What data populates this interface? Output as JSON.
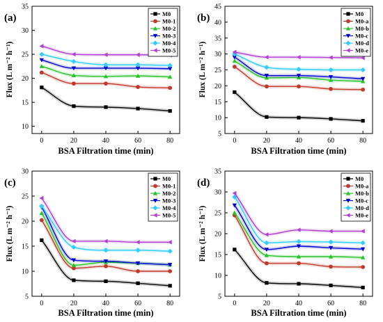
{
  "charts": [
    {
      "panel_label": "(a)",
      "chart_data": {
        "type": "line",
        "xlabel": "BSA Filtration time (min)",
        "ylabel": "Flux (L m⁻² h⁻¹)",
        "x": [
          0,
          20,
          40,
          60,
          80
        ],
        "xlim": [
          -6,
          86
        ],
        "ylim": [
          8.5,
          35
        ],
        "yticks": [
          10,
          15,
          20,
          25,
          30,
          35
        ],
        "xticks": [
          0,
          20,
          40,
          60,
          80
        ],
        "legend_position": "top-right",
        "series": [
          {
            "name": "M0",
            "marker": "square",
            "color": "#000000",
            "values": [
              18.1,
              14.2,
              14.0,
              13.7,
              13.2
            ]
          },
          {
            "name": "M0-1",
            "marker": "circle",
            "color": "#c0392b",
            "values": [
              21.2,
              18.9,
              18.9,
              18.2,
              18.0
            ]
          },
          {
            "name": "M0-2",
            "marker": "triangle-up",
            "color": "#27c427",
            "values": [
              22.5,
              20.6,
              20.4,
              20.5,
              20.3
            ]
          },
          {
            "name": "M0-3",
            "marker": "triangle-down",
            "color": "#0000cc",
            "values": [
              23.8,
              22.1,
              22.1,
              22.1,
              22.0
            ]
          },
          {
            "name": "M0-4",
            "marker": "diamond",
            "color": "#33ccff",
            "values": [
              25.0,
              23.5,
              22.8,
              22.8,
              22.7
            ]
          },
          {
            "name": "M0-5",
            "marker": "triangle-left",
            "color": "#b040d0",
            "values": [
              26.7,
              25.0,
              24.9,
              24.9,
              24.8
            ]
          }
        ]
      }
    },
    {
      "panel_label": "(b)",
      "chart_data": {
        "type": "line",
        "xlabel": "BSA Filtration time (min)",
        "ylabel": "Flux (L m⁻² h⁻¹)",
        "x": [
          0,
          20,
          40,
          60,
          80
        ],
        "xlim": [
          -6,
          86
        ],
        "ylim": [
          5,
          45
        ],
        "yticks": [
          5,
          10,
          15,
          20,
          25,
          30,
          35,
          40,
          45
        ],
        "xticks": [
          0,
          20,
          40,
          60,
          80
        ],
        "legend_position": "top-right",
        "series": [
          {
            "name": "M0",
            "marker": "square",
            "color": "#000000",
            "values": [
              18.0,
              10.2,
              10.0,
              9.6,
              9.0
            ]
          },
          {
            "name": "M0-a",
            "marker": "circle",
            "color": "#c0392b",
            "values": [
              26.0,
              19.8,
              19.8,
              19.0,
              18.8
            ]
          },
          {
            "name": "M0-b",
            "marker": "triangle-up",
            "color": "#27c427",
            "values": [
              27.8,
              22.5,
              22.6,
              21.8,
              21.4
            ]
          },
          {
            "name": "M0-c",
            "marker": "triangle-down",
            "color": "#0000cc",
            "values": [
              29.0,
              23.2,
              23.2,
              22.8,
              22.2
            ]
          },
          {
            "name": "M0-d",
            "marker": "diamond",
            "color": "#33ccff",
            "values": [
              30.0,
              25.8,
              25.2,
              25.0,
              25.0
            ]
          },
          {
            "name": "M0-e",
            "marker": "triangle-left",
            "color": "#b040d0",
            "values": [
              30.6,
              29.0,
              29.0,
              28.9,
              28.8
            ]
          }
        ]
      }
    },
    {
      "panel_label": "(c)",
      "chart_data": {
        "type": "line",
        "xlabel": "BSA Filtration time (min)",
        "ylabel": "Flux (L m⁻² h⁻¹)",
        "x": [
          0,
          20,
          40,
          60,
          80
        ],
        "xlim": [
          -6,
          86
        ],
        "ylim": [
          5,
          30
        ],
        "yticks": [
          5,
          10,
          15,
          20,
          25,
          30
        ],
        "xticks": [
          0,
          20,
          40,
          60,
          80
        ],
        "legend_position": "top-right",
        "series": [
          {
            "name": "M0",
            "marker": "square",
            "color": "#000000",
            "values": [
              16.2,
              8.2,
              8.0,
              7.6,
              7.1
            ]
          },
          {
            "name": "M0-1",
            "marker": "circle",
            "color": "#c0392b",
            "values": [
              20.2,
              10.6,
              11.0,
              10.0,
              10.0
            ]
          },
          {
            "name": "M0-2",
            "marker": "triangle-up",
            "color": "#27c427",
            "values": [
              21.6,
              11.2,
              11.8,
              11.6,
              11.3
            ]
          },
          {
            "name": "M0-3",
            "marker": "triangle-down",
            "color": "#0000cc",
            "values": [
              22.8,
              12.2,
              12.0,
              11.6,
              11.3
            ]
          },
          {
            "name": "M0-4",
            "marker": "diamond",
            "color": "#33ccff",
            "values": [
              23.0,
              14.8,
              14.2,
              14.2,
              14.0
            ]
          },
          {
            "name": "M0-5",
            "marker": "triangle-left",
            "color": "#b040d0",
            "values": [
              24.6,
              16.0,
              16.0,
              15.8,
              15.8
            ]
          }
        ]
      }
    },
    {
      "panel_label": "(d)",
      "chart_data": {
        "type": "line",
        "xlabel": "BSA Filtration time (min)",
        "ylabel": "Flux (L m⁻² h⁻¹)",
        "x": [
          0,
          20,
          40,
          60,
          80
        ],
        "xlim": [
          -6,
          86
        ],
        "ylim": [
          5,
          35
        ],
        "yticks": [
          5,
          10,
          15,
          20,
          25,
          30,
          35
        ],
        "xticks": [
          0,
          20,
          40,
          60,
          80
        ],
        "legend_position": "top-right",
        "series": [
          {
            "name": "M0",
            "marker": "square",
            "color": "#000000",
            "values": [
              16.2,
              8.2,
              8.0,
              7.6,
              7.1
            ]
          },
          {
            "name": "M0-a",
            "marker": "circle",
            "color": "#c0392b",
            "values": [
              24.4,
              12.9,
              12.9,
              12.1,
              12.0
            ]
          },
          {
            "name": "M0-b",
            "marker": "triangle-up",
            "color": "#27c427",
            "values": [
              25.0,
              14.8,
              14.5,
              14.5,
              14.3
            ]
          },
          {
            "name": "M0-c",
            "marker": "triangle-down",
            "color": "#0000cc",
            "values": [
              26.8,
              16.2,
              17.0,
              16.6,
              16.3
            ]
          },
          {
            "name": "M0-d",
            "marker": "diamond",
            "color": "#33ccff",
            "values": [
              28.8,
              17.8,
              18.1,
              18.0,
              17.8
            ]
          },
          {
            "name": "M0-e",
            "marker": "triangle-left",
            "color": "#b040d0",
            "values": [
              29.7,
              19.8,
              20.9,
              20.6,
              20.6
            ]
          }
        ]
      }
    }
  ]
}
